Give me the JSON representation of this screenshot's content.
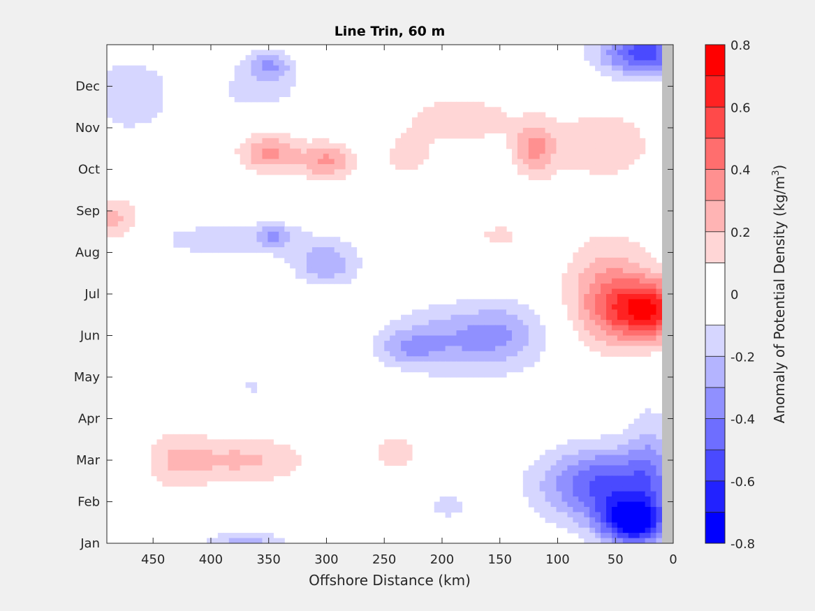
{
  "chart_data": {
    "type": "heatmap",
    "title": "Line Trin, 60 m",
    "xlabel": "Offshore Distance (km)",
    "ylabel": "",
    "xlim": [
      490,
      0
    ],
    "ylim": [
      0,
      12
    ],
    "x_ticks": [
      450,
      400,
      350,
      300,
      250,
      200,
      150,
      100,
      50,
      0
    ],
    "y_ticks": [
      {
        "value": 0,
        "label": "Jan"
      },
      {
        "value": 1,
        "label": "Feb"
      },
      {
        "value": 2,
        "label": "Mar"
      },
      {
        "value": 3,
        "label": "Apr"
      },
      {
        "value": 4,
        "label": "May"
      },
      {
        "value": 5,
        "label": "Jun"
      },
      {
        "value": 6,
        "label": "Jul"
      },
      {
        "value": 7,
        "label": "Aug"
      },
      {
        "value": 8,
        "label": "Sep"
      },
      {
        "value": 9,
        "label": "Oct"
      },
      {
        "value": 10,
        "label": "Nov"
      },
      {
        "value": 11,
        "label": "Dec"
      }
    ],
    "colorbar": {
      "label": "Anomaly of Potential Density (kg/m",
      "label_sup": "3",
      "label_end": ")",
      "clim": [
        -0.8,
        0.8
      ],
      "tick_values": [
        0.8,
        0.6,
        0.4,
        0.2,
        0,
        -0.2,
        -0.4,
        -0.6,
        -0.8
      ],
      "tick_labels": [
        "0.8",
        "0.6",
        "0.4",
        "0.2",
        "0",
        "-0.2",
        "-0.4",
        "-0.6",
        "-0.8"
      ],
      "levels": [
        -0.8,
        -0.7,
        -0.6,
        -0.5,
        -0.4,
        -0.3,
        -0.2,
        -0.1,
        0.1,
        0.2,
        0.3,
        0.4,
        0.5,
        0.6,
        0.7,
        0.8
      ],
      "colors": [
        "#0000ff",
        "#2222ff",
        "#4a4aff",
        "#6e6eff",
        "#9090ff",
        "#b4b4ff",
        "#d6d6ff",
        "#ffffff",
        "#ffd6d6",
        "#ffb4b4",
        "#ff9090",
        "#ff6e6e",
        "#ff4a4a",
        "#ff2222",
        "#ff0000"
      ]
    },
    "anomaly_features": [
      {
        "x_km": 25,
        "y": 11.8,
        "value": -0.55,
        "sx": 40,
        "sy": 0.6
      },
      {
        "x_km": 350,
        "y": 11.5,
        "value": -0.3,
        "sx": 22,
        "sy": 0.35
      },
      {
        "x_km": 470,
        "y": 10.8,
        "value": -0.2,
        "sx": 35,
        "sy": 0.9
      },
      {
        "x_km": 360,
        "y": 10.9,
        "value": -0.14,
        "sx": 45,
        "sy": 0.5
      },
      {
        "x_km": 350,
        "y": 9.4,
        "value": 0.33,
        "sx": 25,
        "sy": 0.45
      },
      {
        "x_km": 300,
        "y": 9.2,
        "value": 0.32,
        "sx": 24,
        "sy": 0.45
      },
      {
        "x_km": 120,
        "y": 9.5,
        "value": 0.3,
        "sx": 18,
        "sy": 0.6
      },
      {
        "x_km": 185,
        "y": 10.2,
        "value": 0.19,
        "sx": 45,
        "sy": 0.55
      },
      {
        "x_km": 60,
        "y": 9.6,
        "value": 0.14,
        "sx": 60,
        "sy": 1.2
      },
      {
        "x_km": 230,
        "y": 9.3,
        "value": 0.14,
        "sx": 25,
        "sy": 0.6
      },
      {
        "x_km": 485,
        "y": 7.8,
        "value": 0.24,
        "sx": 22,
        "sy": 0.55
      },
      {
        "x_km": 18,
        "y": 5.6,
        "value": 0.62,
        "sx": 40,
        "sy": 0.7
      },
      {
        "x_km": 55,
        "y": 6.0,
        "value": 0.32,
        "sx": 38,
        "sy": 1.3
      },
      {
        "x_km": 150,
        "y": 7.4,
        "value": 0.12,
        "sx": 28,
        "sy": 0.4
      },
      {
        "x_km": 380,
        "y": 7.3,
        "value": -0.16,
        "sx": 80,
        "sy": 0.5
      },
      {
        "x_km": 300,
        "y": 6.7,
        "value": -0.28,
        "sx": 28,
        "sy": 0.5
      },
      {
        "x_km": 345,
        "y": 7.4,
        "value": -0.2,
        "sx": 15,
        "sy": 0.25
      },
      {
        "x_km": 180,
        "y": 4.9,
        "value": -0.3,
        "sx": 65,
        "sy": 0.85
      },
      {
        "x_km": 230,
        "y": 4.7,
        "value": -0.18,
        "sx": 25,
        "sy": 0.4
      },
      {
        "x_km": 145,
        "y": 5.2,
        "value": -0.1,
        "sx": 30,
        "sy": 0.8
      },
      {
        "x_km": 375,
        "y": 2.0,
        "value": 0.22,
        "sx": 60,
        "sy": 0.6
      },
      {
        "x_km": 430,
        "y": 2.0,
        "value": 0.14,
        "sx": 25,
        "sy": 0.8
      },
      {
        "x_km": 240,
        "y": 2.2,
        "value": 0.14,
        "sx": 22,
        "sy": 0.6
      },
      {
        "x_km": 35,
        "y": 0.5,
        "value": -0.72,
        "sx": 28,
        "sy": 0.55
      },
      {
        "x_km": 60,
        "y": 1.4,
        "value": -0.52,
        "sx": 55,
        "sy": 0.9
      },
      {
        "x_km": 20,
        "y": 2.0,
        "value": -0.2,
        "sx": 20,
        "sy": 1.4
      },
      {
        "x_km": 370,
        "y": 0.0,
        "value": -0.24,
        "sx": 35,
        "sy": 0.3
      },
      {
        "x_km": 195,
        "y": 0.9,
        "value": -0.12,
        "sx": 25,
        "sy": 0.5
      },
      {
        "x_km": 365,
        "y": 3.8,
        "value": -0.13,
        "sx": 10,
        "sy": 0.25
      }
    ]
  }
}
